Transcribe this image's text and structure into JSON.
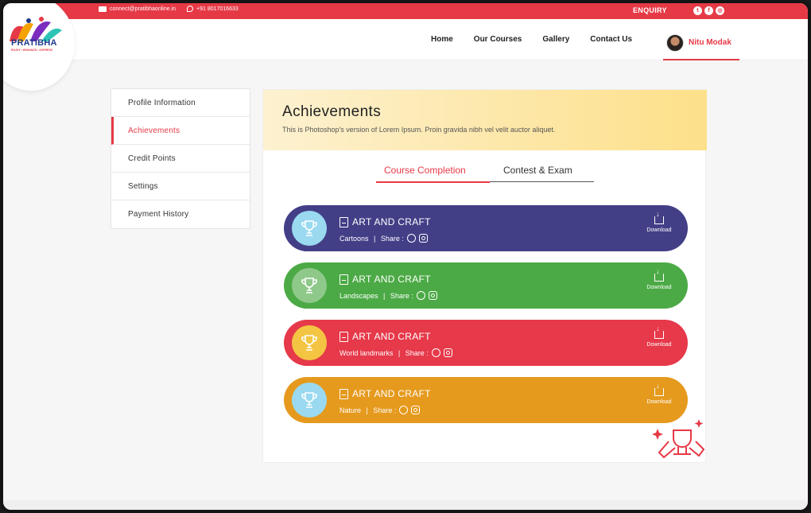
{
  "topbar": {
    "email": "connect@pratibhaonline.in",
    "phone": "+91 8017016633",
    "enquiry": "ENQUIRY",
    "socials": [
      "twitter-icon",
      "facebook-icon",
      "instagram-icon"
    ]
  },
  "brand": {
    "name": "PRATIBHA",
    "tagline": "ENJOY • ENHANCE • EXPRESS"
  },
  "nav": {
    "items": [
      "Home",
      "Our Courses",
      "Gallery",
      "Contact Us"
    ],
    "user_name": "Nitu Modak"
  },
  "sidebar": {
    "items": [
      "Profile Information",
      "Achievements",
      "Credit Points",
      "Settings",
      "Payment History"
    ],
    "active_index": 1
  },
  "hero": {
    "title": "Achievements",
    "subtitle": "This is Photoshop's version  of Lorem Ipsum. Proin gravida nibh vel velit auctor aliquet."
  },
  "tabs": {
    "items": [
      "Course Completion",
      "Contest & Exam"
    ],
    "active_index": 0
  },
  "cards": [
    {
      "title": "ART AND CRAFT",
      "category": "Cartoons",
      "share_label": "Share :",
      "download_label": "Download",
      "color": "#433f87",
      "circle_color": "#9ad9f0"
    },
    {
      "title": "ART AND CRAFT",
      "category": "Landscapes",
      "share_label": "Share :",
      "download_label": "Download",
      "color": "#4caa46",
      "circle_color": "#8fc98a"
    },
    {
      "title": "ART AND CRAFT",
      "category": "World landmarks",
      "share_label": "Share :",
      "download_label": "Download",
      "color": "#e6394a",
      "circle_color": "#f4c542"
    },
    {
      "title": "ART AND CRAFT",
      "category": "Nature",
      "share_label": "Share :",
      "download_label": "Download",
      "color": "#e59a1e",
      "circle_color": "#9ad9f0"
    }
  ],
  "colors": {
    "accent": "#e63946"
  }
}
